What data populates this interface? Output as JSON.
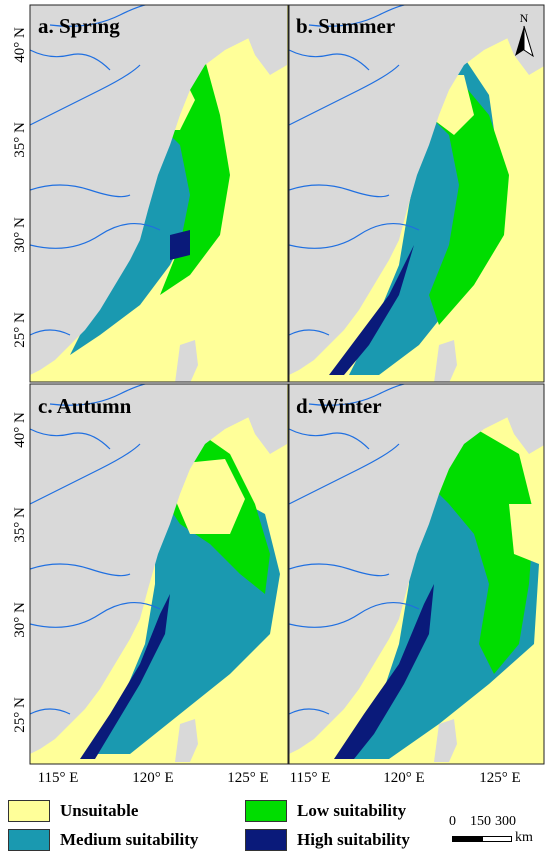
{
  "panels": [
    {
      "id": "a",
      "title": "a. Spring",
      "season": "spring"
    },
    {
      "id": "b",
      "title": "b. Summer",
      "season": "summer"
    },
    {
      "id": "c",
      "title": "c. Autumn",
      "season": "autumn"
    },
    {
      "id": "d",
      "title": "d. Winter",
      "season": "winter"
    }
  ],
  "axes": {
    "x_ticks": [
      "115° E",
      "120° E",
      "125° E",
      "115° E",
      "120° E",
      "125° E"
    ],
    "y_ticks": [
      "40° N",
      "35° N",
      "30° N",
      "25° N"
    ],
    "y_ticks_lower": [
      "40° N",
      "35° N",
      "30° N",
      "25° N"
    ]
  },
  "north_arrow": {
    "label": "N"
  },
  "legend": {
    "items": [
      {
        "label": "Unsuitable",
        "color": "#ffff99"
      },
      {
        "label": "Low suitability",
        "color": "#00dd00"
      },
      {
        "label": "Medium suitability",
        "color": "#1a99b0"
      },
      {
        "label": "High suitability",
        "color": "#0a1a7a"
      }
    ]
  },
  "scale_bar": {
    "ticks": [
      "0",
      "150",
      "300"
    ],
    "unit": "km"
  },
  "colors": {
    "land": "#d9d9d9",
    "river": "#1f6fe0",
    "unsuitable": "#ffff99",
    "low": "#00dd00",
    "medium": "#1a99b0",
    "high": "#0a1a7a"
  }
}
